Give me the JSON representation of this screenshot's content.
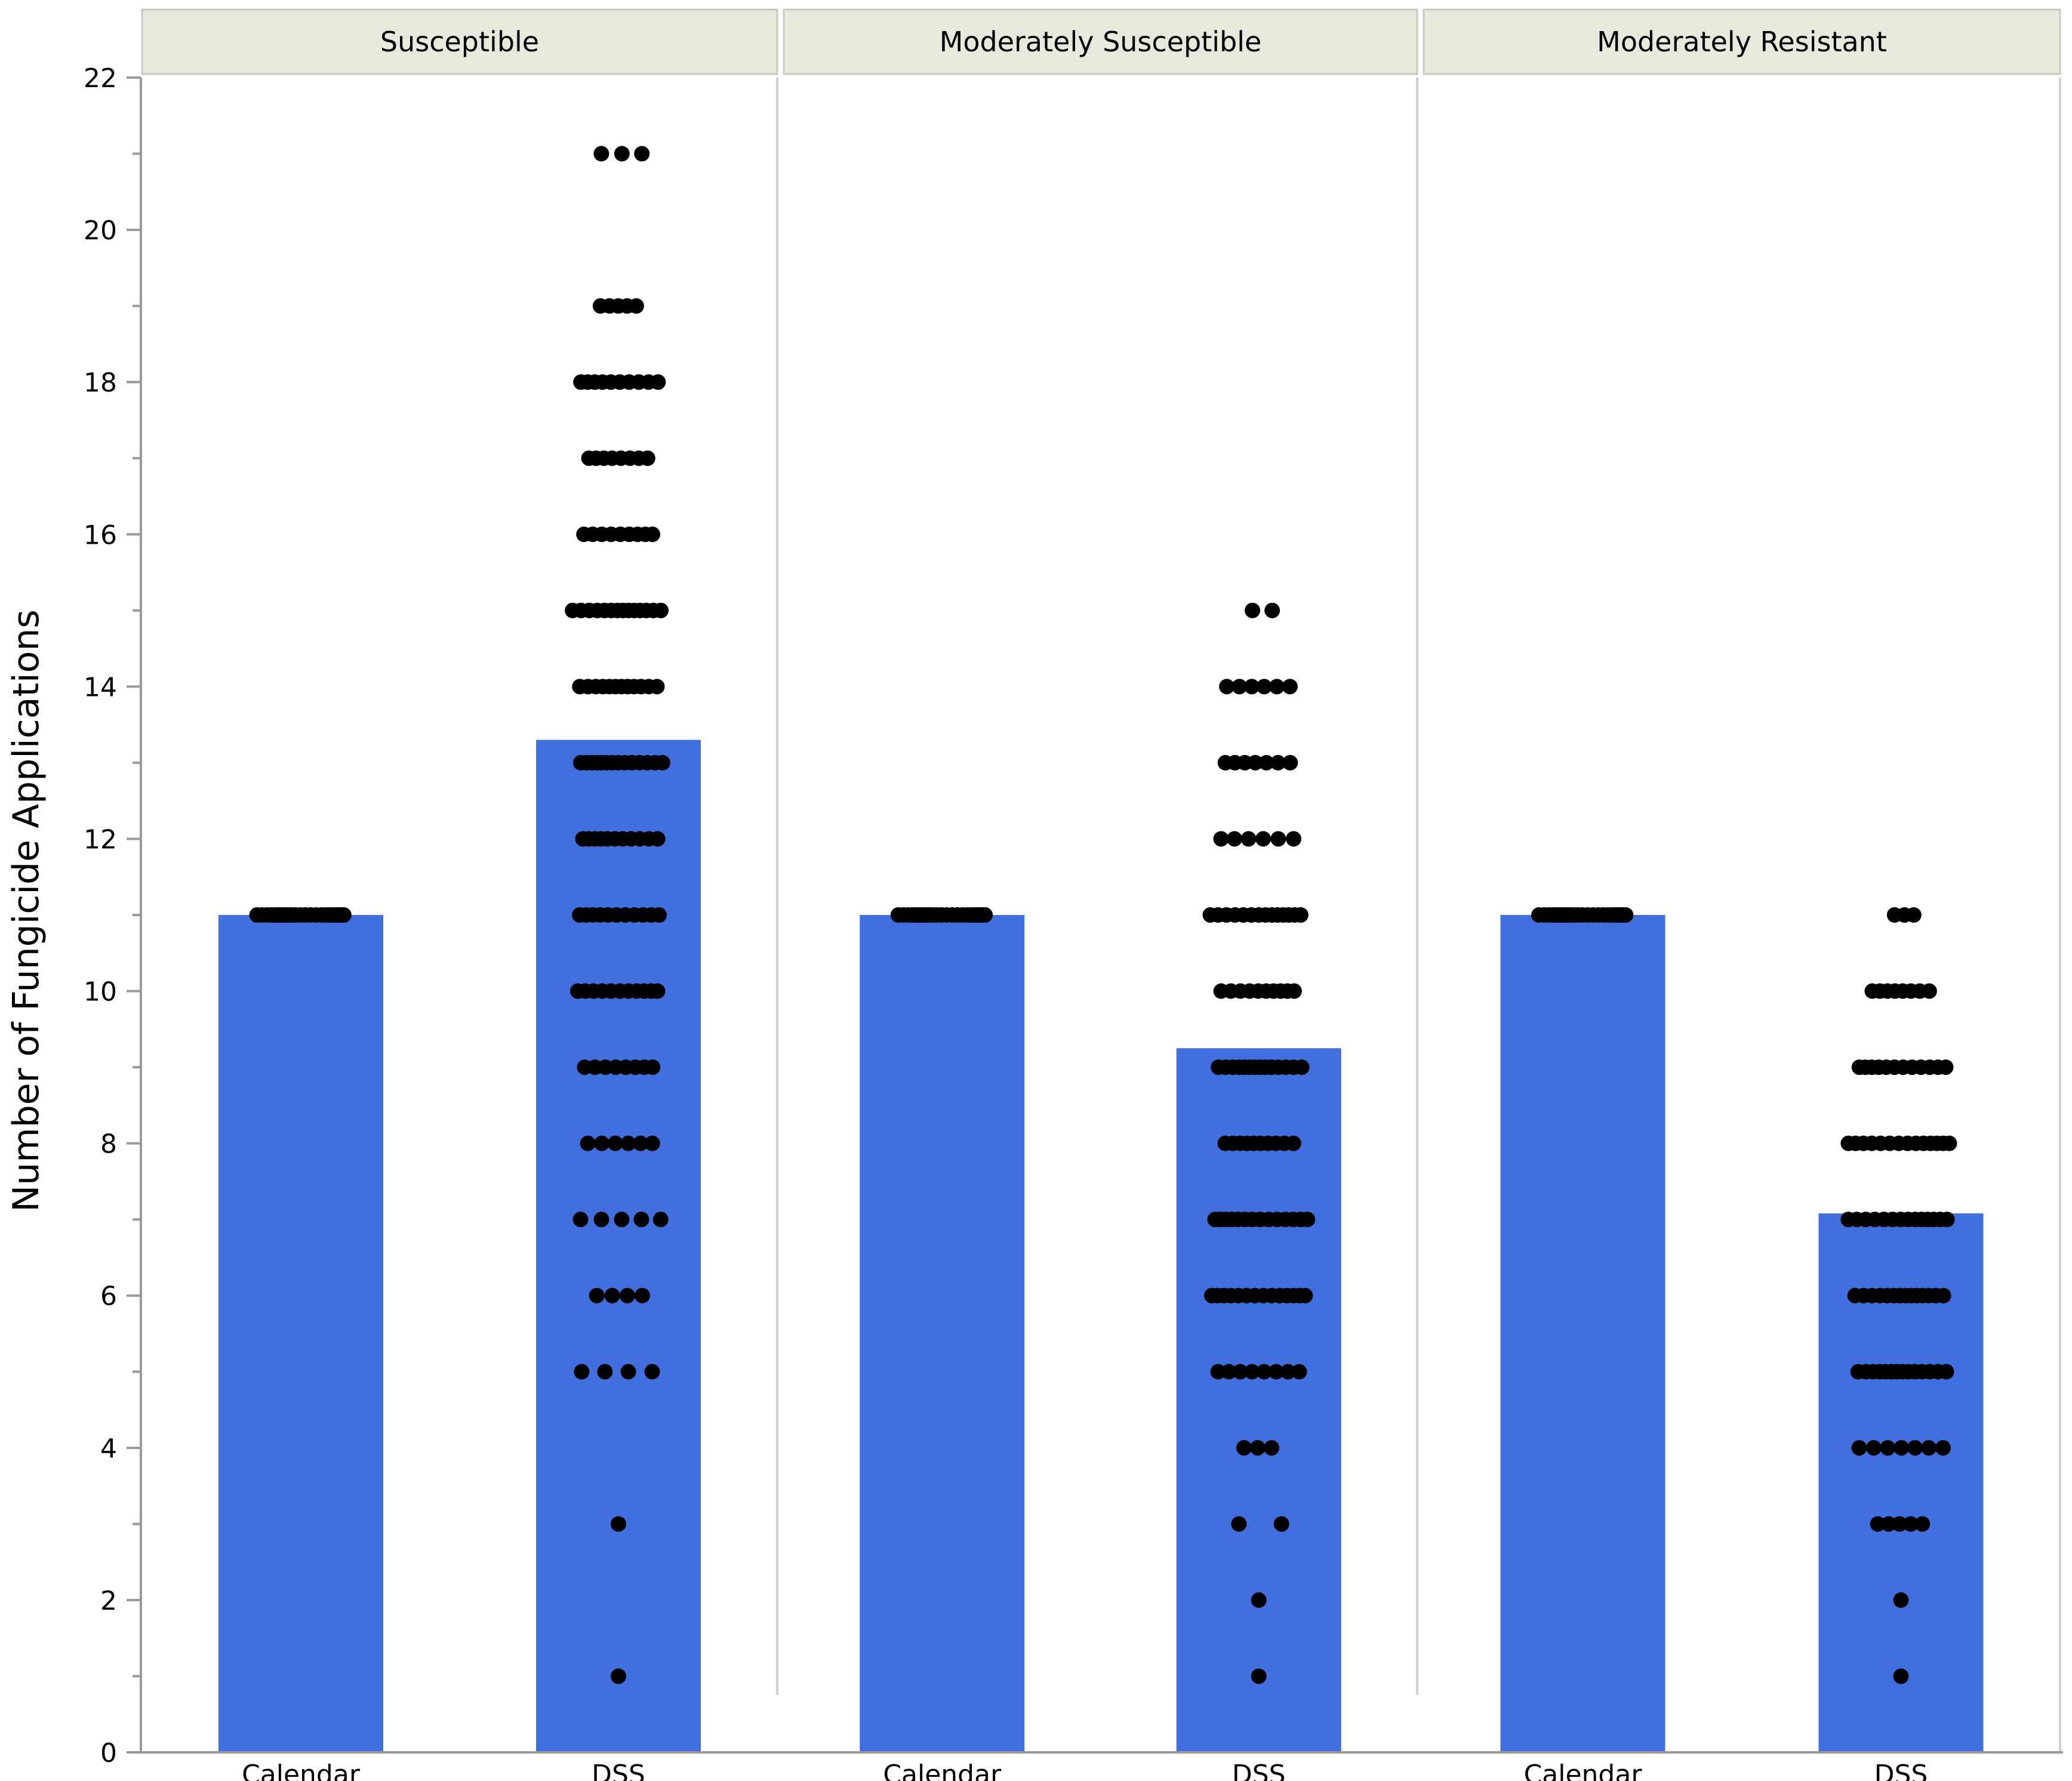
{
  "chart_data": {
    "type": "bar",
    "ylabel": "Number of Fungicide Applications",
    "ylim": [
      0,
      22
    ],
    "yticks": [
      0,
      2,
      4,
      6,
      8,
      10,
      12,
      14,
      16,
      18,
      20,
      22
    ],
    "grid": false,
    "colors": {
      "bar": "#4170de",
      "point": "#000000",
      "strip": "#e8e8dd"
    },
    "panels": [
      {
        "name": "Susceptible",
        "categories": [
          "Calendar",
          "DSS"
        ],
        "values": [
          11,
          13.3
        ],
        "points": [
          {
            "y": 11,
            "count": 24,
            "spread": 0.55,
            "category": 0
          },
          {
            "y": 21,
            "count": 3,
            "spread": 0.25,
            "category": 1
          },
          {
            "y": 19,
            "count": 5,
            "spread": 0.25,
            "category": 1
          },
          {
            "y": 18,
            "count": 10,
            "spread": 0.45,
            "category": 1
          },
          {
            "y": 17,
            "count": 8,
            "spread": 0.32,
            "category": 1
          },
          {
            "y": 16,
            "count": 9,
            "spread": 0.38,
            "category": 1
          },
          {
            "y": 15,
            "count": 14,
            "spread": 0.55,
            "category": 1
          },
          {
            "y": 14,
            "count": 12,
            "spread": 0.5,
            "category": 1
          },
          {
            "y": 13,
            "count": 14,
            "spread": 0.5,
            "category": 1
          },
          {
            "y": 12,
            "count": 11,
            "spread": 0.45,
            "category": 1
          },
          {
            "y": 11,
            "count": 11,
            "spread": 0.45,
            "category": 1
          },
          {
            "y": 10,
            "count": 11,
            "spread": 0.45,
            "category": 1
          },
          {
            "y": 9,
            "count": 8,
            "spread": 0.38,
            "category": 1
          },
          {
            "y": 8,
            "count": 6,
            "spread": 0.38,
            "category": 1
          },
          {
            "y": 7,
            "count": 5,
            "spread": 0.5,
            "category": 1
          },
          {
            "y": 6,
            "count": 4,
            "spread": 0.3,
            "category": 1
          },
          {
            "y": 5,
            "count": 4,
            "spread": 0.45,
            "category": 1
          },
          {
            "y": 3,
            "count": 1,
            "spread": 0,
            "category": 1
          },
          {
            "y": 1,
            "count": 1,
            "spread": 0,
            "category": 1
          }
        ]
      },
      {
        "name": "Moderately Susceptible",
        "categories": [
          "Calendar",
          "DSS"
        ],
        "values": [
          11,
          9.25
        ],
        "points": [
          {
            "y": 11,
            "count": 24,
            "spread": 0.55,
            "category": 0
          },
          {
            "y": 15,
            "count": 2,
            "spread": 0.12,
            "category": 1
          },
          {
            "y": 14,
            "count": 6,
            "spread": 0.42,
            "category": 1
          },
          {
            "y": 13,
            "count": 7,
            "spread": 0.4,
            "category": 1
          },
          {
            "y": 12,
            "count": 6,
            "spread": 0.42,
            "category": 1
          },
          {
            "y": 11,
            "count": 14,
            "spread": 0.55,
            "category": 1
          },
          {
            "y": 10,
            "count": 10,
            "spread": 0.45,
            "category": 1
          },
          {
            "y": 9,
            "count": 14,
            "spread": 0.52,
            "category": 1
          },
          {
            "y": 8,
            "count": 10,
            "spread": 0.45,
            "category": 1
          },
          {
            "y": 7,
            "count": 14,
            "spread": 0.55,
            "category": 1
          },
          {
            "y": 6,
            "count": 14,
            "spread": 0.55,
            "category": 1
          },
          {
            "y": 5,
            "count": 8,
            "spread": 0.45,
            "category": 1
          },
          {
            "y": 4,
            "count": 3,
            "spread": 0.15,
            "category": 1
          },
          {
            "y": 3,
            "count": 2,
            "spread": 0.25,
            "category": 1
          },
          {
            "y": 2,
            "count": 1,
            "spread": 0,
            "category": 1
          },
          {
            "y": 1,
            "count": 1,
            "spread": 0,
            "category": 1
          }
        ]
      },
      {
        "name": "Moderately Resistant",
        "categories": [
          "Calendar",
          "DSS"
        ],
        "values": [
          11,
          7.08
        ],
        "points": [
          {
            "y": 11,
            "count": 24,
            "spread": 0.55,
            "category": 0
          },
          {
            "y": 11,
            "count": 3,
            "spread": 0.12,
            "category": 1
          },
          {
            "y": 10,
            "count": 8,
            "spread": 0.38,
            "category": 1
          },
          {
            "y": 9,
            "count": 12,
            "spread": 0.5,
            "category": 1
          },
          {
            "y": 8,
            "count": 14,
            "spread": 0.6,
            "category": 1
          },
          {
            "y": 7,
            "count": 14,
            "spread": 0.6,
            "category": 1
          },
          {
            "y": 6,
            "count": 14,
            "spread": 0.55,
            "category": 1
          },
          {
            "y": 5,
            "count": 14,
            "spread": 0.55,
            "category": 1
          },
          {
            "y": 4,
            "count": 7,
            "spread": 0.55,
            "category": 1
          },
          {
            "y": 3,
            "count": 5,
            "spread": 0.3,
            "category": 1
          },
          {
            "y": 2,
            "count": 1,
            "spread": 0,
            "category": 1
          },
          {
            "y": 1,
            "count": 1,
            "spread": 0,
            "category": 1
          }
        ]
      }
    ]
  }
}
